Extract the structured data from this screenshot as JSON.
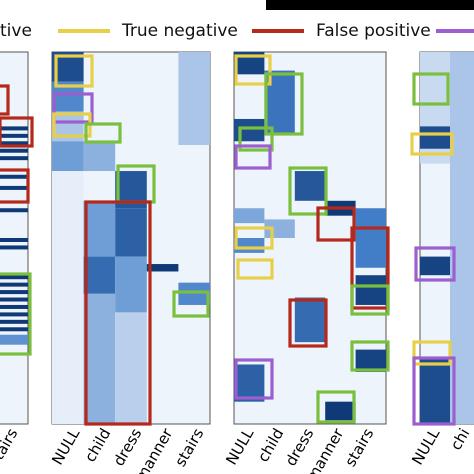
{
  "legend": {
    "items": [
      {
        "label": "tive",
        "color": "#2c2c2c"
      },
      {
        "label": "True negative",
        "color": "#e8cf4a"
      },
      {
        "label": "False positive",
        "color": "#b5281c"
      },
      {
        "label": "",
        "color": "#9c5fd0"
      }
    ]
  },
  "colors": {
    "true_positive": "#7bbf3f",
    "true_negative": "#e8cf4a",
    "false_positive": "#b5281c",
    "false_negative": "#9c5fd0",
    "cmap_low": "#f4f8fd",
    "cmap_high": "#08306b"
  },
  "chart_data": [
    {
      "type": "heatmap",
      "panel": "left-partial",
      "x_tick_labels": [
        "stairs"
      ],
      "value_range": [
        0,
        1
      ],
      "description_of_values": "rows over time, columns = predicted class"
    },
    {
      "type": "heatmap",
      "panel": "second",
      "x_tick_labels": [
        "NULL",
        "child",
        "dress",
        "manner",
        "stairs"
      ],
      "value_range": [
        0,
        1
      ],
      "columns": [
        {
          "class": "NULL",
          "segments": [
            [
              0.0,
              0.08,
              0.85
            ],
            [
              0.08,
              0.16,
              0.55
            ],
            [
              0.16,
              0.24,
              0.25
            ],
            [
              0.24,
              0.32,
              0.45
            ],
            [
              0.32,
              1.0,
              0.05
            ]
          ]
        },
        {
          "class": "child",
          "segments": [
            [
              0.24,
              0.32,
              0.35
            ],
            [
              0.4,
              0.55,
              0.45
            ],
            [
              0.55,
              0.65,
              0.7
            ],
            [
              0.65,
              1.0,
              0.35
            ]
          ]
        },
        {
          "class": "dress",
          "segments": [
            [
              0.32,
              0.42,
              0.8
            ],
            [
              0.42,
              0.55,
              0.75
            ],
            [
              0.55,
              0.7,
              0.45
            ],
            [
              0.7,
              1.0,
              0.2
            ]
          ]
        },
        {
          "class": "manner",
          "segments": [
            [
              0.57,
              0.59,
              0.95
            ]
          ]
        },
        {
          "class": "stairs",
          "segments": [
            [
              0.0,
              0.25,
              0.25
            ],
            [
              0.62,
              0.68,
              0.55
            ]
          ]
        }
      ]
    },
    {
      "type": "heatmap",
      "panel": "third",
      "x_tick_labels": [
        "NULL",
        "child",
        "dress",
        "manner",
        "stairs"
      ],
      "value_range": [
        0,
        1
      ],
      "columns": [
        {
          "class": "NULL",
          "segments": [
            [
              0.0,
              0.06,
              0.9
            ],
            [
              0.18,
              0.24,
              0.85
            ],
            [
              0.42,
              0.46,
              0.4
            ],
            [
              0.5,
              0.54,
              0.55
            ],
            [
              0.84,
              0.94,
              0.75
            ]
          ]
        },
        {
          "class": "child",
          "segments": [
            [
              0.05,
              0.22,
              0.65
            ],
            [
              0.45,
              0.5,
              0.35
            ]
          ]
        },
        {
          "class": "dress",
          "segments": [
            [
              0.32,
              0.4,
              0.8
            ],
            [
              0.66,
              0.78,
              0.7
            ]
          ]
        },
        {
          "class": "manner",
          "segments": [
            [
              0.4,
              0.44,
              0.95
            ],
            [
              0.94,
              0.99,
              0.95
            ]
          ]
        },
        {
          "class": "stairs",
          "segments": [
            [
              0.42,
              0.58,
              0.6
            ],
            [
              0.6,
              0.68,
              0.9
            ],
            [
              0.8,
              0.86,
              0.9
            ]
          ]
        }
      ]
    },
    {
      "type": "heatmap",
      "panel": "right-partial",
      "x_tick_labels": [
        "NULL",
        "chi"
      ],
      "value_range": [
        0,
        1
      ]
    }
  ]
}
